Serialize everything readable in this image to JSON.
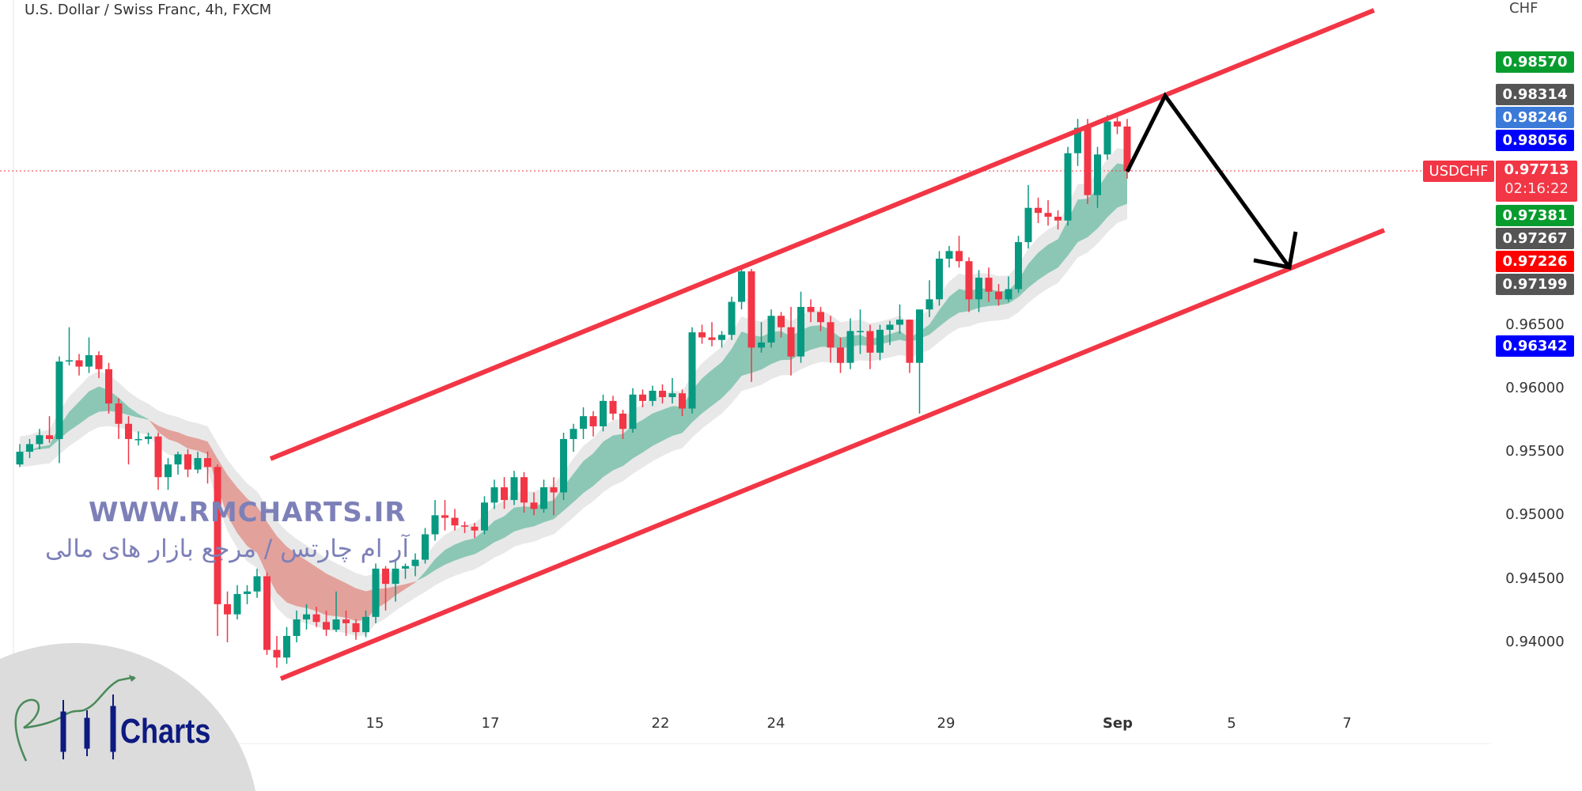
{
  "header": {
    "title": "U.S. Dollar / Swiss Franc, 4h, FXCM",
    "currency": "CHF"
  },
  "symbol_tag": "USDCHF",
  "current_price": {
    "price": "0.97713",
    "countdown": "02:16:22",
    "color": "#f23645"
  },
  "price_labels": [
    {
      "value": "0.98570",
      "color": "#089c2f"
    },
    {
      "value": "0.98314",
      "color": "#555555"
    },
    {
      "value": "0.98246",
      "color": "#3b7ad9"
    },
    {
      "value": "0.98056",
      "color": "#0000ff"
    },
    {
      "value": "0.97381",
      "color": "#089c2f"
    },
    {
      "value": "0.97267",
      "color": "#555555"
    },
    {
      "value": "0.97226",
      "color": "#ff0000"
    },
    {
      "value": "0.97199",
      "color": "#555555"
    },
    {
      "value": "0.96342",
      "color": "#0000ff"
    }
  ],
  "watermark": {
    "url": "WWW.RMCHARTS.IR",
    "tagline": "آر ام چارتس / مرجع بازار های مالی"
  },
  "logo": {
    "text": "Charts",
    "monogram": "RM"
  },
  "chart_data": {
    "type": "candlestick",
    "title": "U.S. Dollar / Swiss Franc, 4h, FXCM",
    "ylim": [
      0.9375,
      0.9875
    ],
    "y_ticks": [
      "0.96500",
      "0.96000",
      "0.95500",
      "0.95000",
      "0.94500",
      "0.94000"
    ],
    "x_ticks": [
      "15",
      "17",
      "22",
      "24",
      "29",
      "Sep",
      "5",
      "7"
    ],
    "up_color": "#089981",
    "down_color": "#f23645",
    "grid": false,
    "candles_ohlc": [
      [
        0.954,
        0.9556,
        0.9538,
        0.955
      ],
      [
        0.955,
        0.956,
        0.9545,
        0.9556
      ],
      [
        0.9556,
        0.9568,
        0.9552,
        0.9563
      ],
      [
        0.9563,
        0.9578,
        0.9557,
        0.956
      ],
      [
        0.956,
        0.9625,
        0.9541,
        0.9621
      ],
      [
        0.9621,
        0.9648,
        0.9618,
        0.9622
      ],
      [
        0.9622,
        0.9627,
        0.961,
        0.9617
      ],
      [
        0.9617,
        0.964,
        0.9612,
        0.9626
      ],
      [
        0.9626,
        0.9629,
        0.9608,
        0.9615
      ],
      [
        0.9615,
        0.962,
        0.958,
        0.9588
      ],
      [
        0.9588,
        0.9592,
        0.956,
        0.9572
      ],
      [
        0.9572,
        0.9578,
        0.954,
        0.956
      ],
      [
        0.956,
        0.9566,
        0.9555,
        0.956
      ],
      [
        0.956,
        0.9565,
        0.9556,
        0.9562
      ],
      [
        0.9562,
        0.9565,
        0.952,
        0.953
      ],
      [
        0.953,
        0.9545,
        0.952,
        0.954
      ],
      [
        0.954,
        0.955,
        0.9532,
        0.9548
      ],
      [
        0.9548,
        0.9552,
        0.953,
        0.9536
      ],
      [
        0.9536,
        0.955,
        0.9533,
        0.9545
      ],
      [
        0.9545,
        0.955,
        0.9525,
        0.9538
      ],
      [
        0.9538,
        0.954,
        0.9405,
        0.943
      ],
      [
        0.943,
        0.944,
        0.94,
        0.9422
      ],
      [
        0.9422,
        0.9445,
        0.9418,
        0.9438
      ],
      [
        0.9438,
        0.9445,
        0.943,
        0.944
      ],
      [
        0.944,
        0.9458,
        0.9435,
        0.9452
      ],
      [
        0.9452,
        0.9455,
        0.939,
        0.9394
      ],
      [
        0.9394,
        0.9405,
        0.938,
        0.9388
      ],
      [
        0.9388,
        0.9412,
        0.9383,
        0.9405
      ],
      [
        0.9405,
        0.9425,
        0.94,
        0.9418
      ],
      [
        0.9418,
        0.943,
        0.941,
        0.9422
      ],
      [
        0.9422,
        0.9428,
        0.9412,
        0.9416
      ],
      [
        0.9416,
        0.9425,
        0.9405,
        0.941
      ],
      [
        0.941,
        0.944,
        0.9408,
        0.9418
      ],
      [
        0.9418,
        0.9425,
        0.9405,
        0.9415
      ],
      [
        0.9415,
        0.9418,
        0.9402,
        0.9408
      ],
      [
        0.9408,
        0.9425,
        0.9404,
        0.942
      ],
      [
        0.942,
        0.9462,
        0.9415,
        0.9458
      ],
      [
        0.9458,
        0.946,
        0.9425,
        0.9446
      ],
      [
        0.9446,
        0.9465,
        0.9432,
        0.9458
      ],
      [
        0.9458,
        0.9462,
        0.945,
        0.946
      ],
      [
        0.946,
        0.947,
        0.9452,
        0.9465
      ],
      [
        0.9465,
        0.949,
        0.9462,
        0.9485
      ],
      [
        0.9485,
        0.9512,
        0.948,
        0.95
      ],
      [
        0.95,
        0.9512,
        0.9488,
        0.9498
      ],
      [
        0.9498,
        0.9505,
        0.9488,
        0.9492
      ],
      [
        0.9492,
        0.9495,
        0.9486,
        0.9491
      ],
      [
        0.9491,
        0.9494,
        0.9482,
        0.9488
      ],
      [
        0.9488,
        0.9515,
        0.9485,
        0.951
      ],
      [
        0.951,
        0.9528,
        0.9505,
        0.9522
      ],
      [
        0.9522,
        0.953,
        0.9505,
        0.9512
      ],
      [
        0.9512,
        0.9535,
        0.9508,
        0.953
      ],
      [
        0.953,
        0.9534,
        0.9502,
        0.951
      ],
      [
        0.951,
        0.9518,
        0.95,
        0.9505
      ],
      [
        0.9505,
        0.9528,
        0.9502,
        0.9522
      ],
      [
        0.9522,
        0.953,
        0.95,
        0.9518
      ],
      [
        0.9518,
        0.9565,
        0.9512,
        0.956
      ],
      [
        0.956,
        0.9572,
        0.955,
        0.9568
      ],
      [
        0.9568,
        0.9585,
        0.956,
        0.9578
      ],
      [
        0.9578,
        0.9582,
        0.9562,
        0.957
      ],
      [
        0.957,
        0.9595,
        0.9566,
        0.959
      ],
      [
        0.959,
        0.9594,
        0.9575,
        0.958
      ],
      [
        0.958,
        0.9583,
        0.956,
        0.9568
      ],
      [
        0.9568,
        0.96,
        0.9565,
        0.9595
      ],
      [
        0.9595,
        0.9599,
        0.9585,
        0.959
      ],
      [
        0.959,
        0.9602,
        0.9586,
        0.9598
      ],
      [
        0.9598,
        0.9603,
        0.9588,
        0.9593
      ],
      [
        0.9593,
        0.9608,
        0.9588,
        0.9596
      ],
      [
        0.9596,
        0.9599,
        0.9578,
        0.9584
      ],
      [
        0.9584,
        0.9648,
        0.958,
        0.9644
      ],
      [
        0.9644,
        0.965,
        0.9635,
        0.964
      ],
      [
        0.964,
        0.9652,
        0.9633,
        0.9638
      ],
      [
        0.9638,
        0.9645,
        0.9632,
        0.9642
      ],
      [
        0.9642,
        0.9672,
        0.9638,
        0.9668
      ],
      [
        0.9668,
        0.9695,
        0.9662,
        0.9692
      ],
      [
        0.9692,
        0.9694,
        0.9605,
        0.9632
      ],
      [
        0.9632,
        0.9652,
        0.9628,
        0.9636
      ],
      [
        0.9636,
        0.9662,
        0.9632,
        0.9657
      ],
      [
        0.9657,
        0.966,
        0.964,
        0.9648
      ],
      [
        0.9648,
        0.9664,
        0.961,
        0.9625
      ],
      [
        0.9625,
        0.9676,
        0.962,
        0.9664
      ],
      [
        0.9664,
        0.967,
        0.9652,
        0.966
      ],
      [
        0.966,
        0.9664,
        0.9645,
        0.9652
      ],
      [
        0.9652,
        0.9657,
        0.962,
        0.9632
      ],
      [
        0.9632,
        0.964,
        0.9612,
        0.962
      ],
      [
        0.962,
        0.9655,
        0.9615,
        0.9645
      ],
      [
        0.9645,
        0.9662,
        0.9627,
        0.9645
      ],
      [
        0.9645,
        0.965,
        0.9615,
        0.9628
      ],
      [
        0.9628,
        0.965,
        0.9622,
        0.9646
      ],
      [
        0.9646,
        0.9653,
        0.9634,
        0.965
      ],
      [
        0.965,
        0.9666,
        0.9643,
        0.9654
      ],
      [
        0.9654,
        0.9654,
        0.9612,
        0.962
      ],
      [
        0.962,
        0.9662,
        0.958,
        0.9662
      ],
      [
        0.9662,
        0.9685,
        0.9656,
        0.967
      ],
      [
        0.967,
        0.9708,
        0.9665,
        0.9702
      ],
      [
        0.9702,
        0.9712,
        0.9695,
        0.9708
      ],
      [
        0.9708,
        0.972,
        0.9695,
        0.97
      ],
      [
        0.97,
        0.9703,
        0.966,
        0.967
      ],
      [
        0.967,
        0.9693,
        0.966,
        0.9687
      ],
      [
        0.9687,
        0.9695,
        0.9668,
        0.9676
      ],
      [
        0.9676,
        0.9682,
        0.9665,
        0.967
      ],
      [
        0.967,
        0.9688,
        0.9668,
        0.9678
      ],
      [
        0.9678,
        0.972,
        0.9675,
        0.9715
      ],
      [
        0.9715,
        0.976,
        0.971,
        0.9742
      ],
      [
        0.9742,
        0.975,
        0.973,
        0.9738
      ],
      [
        0.9738,
        0.9748,
        0.9728,
        0.9735
      ],
      [
        0.9735,
        0.974,
        0.9725,
        0.9732
      ],
      [
        0.9732,
        0.979,
        0.9728,
        0.9785
      ],
      [
        0.9785,
        0.9812,
        0.9775,
        0.9805
      ],
      [
        0.9805,
        0.9812,
        0.9745,
        0.9752
      ],
      [
        0.9752,
        0.979,
        0.9742,
        0.9784
      ],
      [
        0.9784,
        0.9815,
        0.978,
        0.981
      ],
      [
        0.981,
        0.9817,
        0.98,
        0.9806
      ],
      [
        0.9806,
        0.9812,
        0.9765,
        0.9771
      ]
    ],
    "annotations": [
      {
        "type": "trend-channel",
        "color": "#f23645"
      },
      {
        "type": "projection-arrow",
        "color": "#000000"
      }
    ]
  }
}
